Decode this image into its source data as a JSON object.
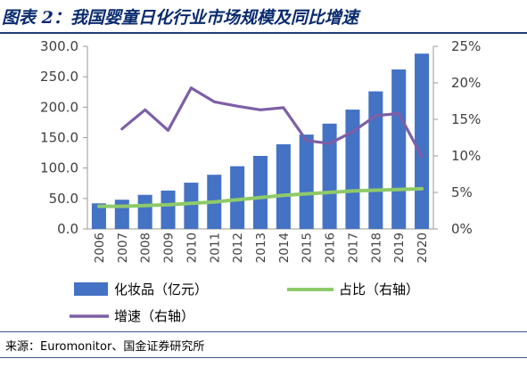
{
  "title": "图表 2：我国婴童日化行业市场规模及同比增速",
  "source": "来源：Euromonitor、国金证券研究所",
  "chart_data": {
    "type": "bar",
    "categories": [
      "2006",
      "2007",
      "2008",
      "2009",
      "2010",
      "2011",
      "2012",
      "2013",
      "2014",
      "2015",
      "2016",
      "2017",
      "2018",
      "2019",
      "2020"
    ],
    "series": [
      {
        "name": "化妆品（亿元）",
        "type": "bar",
        "axis": "left",
        "color": "#4472c4",
        "values": [
          42,
          48,
          56,
          63,
          76,
          89,
          103,
          120,
          139,
          155,
          173,
          196,
          226,
          262,
          288
        ]
      },
      {
        "name": "占比（右轴）",
        "type": "line",
        "axis": "right",
        "color": "#8fca6a",
        "values": [
          3.1,
          3.1,
          3.2,
          3.3,
          3.5,
          3.7,
          4.0,
          4.3,
          4.6,
          4.8,
          5.0,
          5.2,
          5.3,
          5.4,
          5.5
        ]
      },
      {
        "name": "增速（右轴）",
        "type": "line",
        "axis": "right",
        "color": "#7d5fa6",
        "values": [
          null,
          13.7,
          16.3,
          13.5,
          19.3,
          17.4,
          16.8,
          16.3,
          16.6,
          12.1,
          11.7,
          13.3,
          15.5,
          15.8,
          9.9
        ]
      }
    ],
    "y_left": {
      "lim": [
        0,
        300
      ],
      "ticks": [
        "0.0",
        "50.0",
        "100.0",
        "150.0",
        "200.0",
        "250.0",
        "300.0"
      ]
    },
    "y_right": {
      "lim": [
        0,
        25
      ],
      "ticks": [
        "0%",
        "5%",
        "10%",
        "15%",
        "20%",
        "25%"
      ]
    },
    "grid": false,
    "legend": "bottom"
  }
}
